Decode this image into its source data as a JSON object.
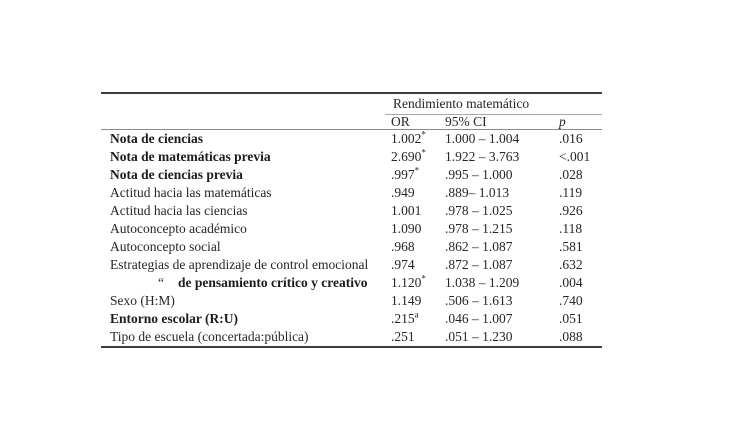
{
  "table": {
    "spanner": "Rendimiento matemático",
    "columns": {
      "or": "OR",
      "ci": "95% CI",
      "p": "p"
    },
    "rows": [
      {
        "label": "Nota de ciencias",
        "or": "1.002",
        "or_sup": "*",
        "ci": "1.000 – 1.004",
        "p": ".016"
      },
      {
        "label": "Nota de matemáticas previa",
        "or": "2.690",
        "or_sup": "*",
        "ci": "1.922 – 3.763",
        "p": "<.001"
      },
      {
        "label": "Nota de ciencias previa",
        "or": ".997",
        "or_sup": "*",
        "ci": ".995 – 1.000",
        "p": ".028"
      },
      {
        "label": "Actitud hacia las matemáticas",
        "or": ".949",
        "or_sup": "",
        "ci": ".889– 1.013",
        "p": ".119"
      },
      {
        "label": "Actitud hacia las ciencias",
        "or": "1.001",
        "or_sup": "",
        "ci": ".978 – 1.025",
        "p": ".926"
      },
      {
        "label": "Autoconcepto académico",
        "or": "1.090",
        "or_sup": "",
        "ci": ".978 – 1.215",
        "p": ".118"
      },
      {
        "label": "Autoconcepto social",
        "or": ".968",
        "or_sup": "",
        "ci": ".862 – 1.087",
        "p": ".581"
      },
      {
        "label": "Estrategias de aprendizaje de control emocional",
        "or": ".974",
        "or_sup": "",
        "ci": ".872 – 1.087",
        "p": ".632"
      },
      {
        "ditto": "“",
        "label": "de pensamiento crítico y creativo",
        "or": "1.120",
        "or_sup": "*",
        "ci": "1.038 – 1.209",
        "p": ".004"
      },
      {
        "label": "Sexo (H:M)",
        "or": "1.149",
        "or_sup": "",
        "ci": ".506 – 1.613",
        "p": ".740"
      },
      {
        "label": "Entorno escolar (R:U)",
        "or": ".215",
        "or_sup": "a",
        "ci": ".046 – 1.007",
        "p": ".051"
      },
      {
        "label": "Tipo de escuela (concertada:pública)",
        "or": ".251",
        "or_sup": "",
        "ci": ".051 – 1.230",
        "p": ".088"
      }
    ]
  }
}
